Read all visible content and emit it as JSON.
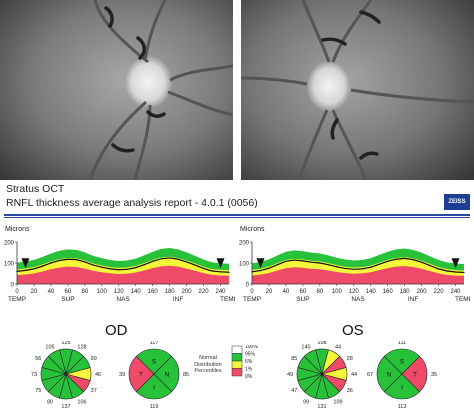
{
  "header": {
    "title": "Stratus OCT",
    "subtitle": "RNFL thickness average analysis report - 4.0.1 (0056)",
    "logo_text": "ZEISS"
  },
  "legend": {
    "title": "Normal Distribution Percentiles",
    "levels": [
      "100%",
      "95%",
      "5%",
      "1%",
      "0%"
    ],
    "colors": [
      "#ffffff",
      "#27c23a",
      "#f5f53a",
      "#f04a6a"
    ]
  },
  "od": {
    "label": "OD",
    "chart": {
      "ylabel": "Microns",
      "ylim": [
        0,
        200
      ],
      "yticks": [
        0,
        100,
        200
      ],
      "xticks": [
        0,
        20,
        40,
        60,
        80,
        100,
        120,
        140,
        160,
        180,
        200,
        220,
        240
      ],
      "region_labels": [
        "TEMP",
        "SUP",
        "NAS",
        "INF",
        "TEMP"
      ],
      "x": [
        0,
        10,
        20,
        30,
        40,
        50,
        60,
        70,
        80,
        90,
        100,
        110,
        120,
        130,
        140,
        150,
        160,
        170,
        180,
        190,
        200,
        210,
        220,
        230,
        240,
        250
      ],
      "y": [
        60,
        65,
        72,
        85,
        100,
        112,
        118,
        116,
        105,
        90,
        80,
        72,
        68,
        70,
        78,
        92,
        108,
        120,
        124,
        118,
        105,
        90,
        74,
        62,
        58,
        56
      ]
    },
    "clock_hours": [
      {
        "pos": "12",
        "value": "125",
        "category": "green"
      },
      {
        "pos": "1",
        "value": "105",
        "category": "green"
      },
      {
        "pos": "2",
        "value": "56",
        "category": "green"
      },
      {
        "pos": "3",
        "value": "73",
        "category": "green"
      },
      {
        "pos": "4",
        "value": "75",
        "category": "green"
      },
      {
        "pos": "5",
        "value": "80",
        "category": "green"
      },
      {
        "pos": "6",
        "value": "137",
        "category": "green"
      },
      {
        "pos": "7",
        "value": "106",
        "category": "green"
      },
      {
        "pos": "8",
        "value": "37",
        "category": "red"
      },
      {
        "pos": "9",
        "value": "46",
        "category": "yellow"
      },
      {
        "pos": "10",
        "value": "99",
        "category": "green"
      },
      {
        "pos": "11",
        "value": "128",
        "category": "green"
      }
    ],
    "quadrants": [
      {
        "pos": "S",
        "value": "117",
        "category": "green"
      },
      {
        "pos": "N",
        "value": "85",
        "category": "green"
      },
      {
        "pos": "I",
        "value": "119",
        "category": "green"
      },
      {
        "pos": "T",
        "value": "39",
        "category": "red"
      }
    ]
  },
  "os": {
    "label": "OS",
    "chart": {
      "ylabel": "Microns",
      "ylim": [
        0,
        200
      ],
      "yticks": [
        0,
        100,
        200
      ],
      "xticks": [
        0,
        20,
        40,
        60,
        80,
        100,
        120,
        140,
        160,
        180,
        200,
        220,
        240
      ],
      "region_labels": [
        "TEMP",
        "SUP",
        "NAS",
        "INF",
        "TEMP"
      ],
      "x": [
        0,
        10,
        20,
        30,
        40,
        50,
        60,
        70,
        80,
        90,
        100,
        110,
        120,
        130,
        140,
        150,
        160,
        170,
        180,
        190,
        200,
        210,
        220,
        230,
        240,
        250
      ],
      "y": [
        58,
        64,
        75,
        92,
        108,
        114,
        110,
        104,
        100,
        92,
        82,
        74,
        70,
        72,
        80,
        94,
        108,
        118,
        122,
        116,
        104,
        88,
        72,
        62,
        57,
        55
      ]
    },
    "clock_hours": [
      {
        "pos": "12",
        "value": "108",
        "category": "green"
      },
      {
        "pos": "1",
        "value": "44",
        "category": "yellow"
      },
      {
        "pos": "2",
        "value": "28",
        "category": "red"
      },
      {
        "pos": "3",
        "value": "44",
        "category": "yellow"
      },
      {
        "pos": "4",
        "value": "36",
        "category": "red"
      },
      {
        "pos": "5",
        "value": "109",
        "category": "green"
      },
      {
        "pos": "6",
        "value": "131",
        "category": "green"
      },
      {
        "pos": "7",
        "value": "99",
        "category": "green"
      },
      {
        "pos": "8",
        "value": "47",
        "category": "green"
      },
      {
        "pos": "9",
        "value": "49",
        "category": "green"
      },
      {
        "pos": "10",
        "value": "85",
        "category": "green"
      },
      {
        "pos": "11",
        "value": "140",
        "category": "green"
      }
    ],
    "quadrants": [
      {
        "pos": "S",
        "value": "111",
        "category": "green"
      },
      {
        "pos": "N",
        "value": "67",
        "category": "green"
      },
      {
        "pos": "I",
        "value": "113",
        "category": "green"
      },
      {
        "pos": "T",
        "value": "35",
        "category": "red"
      }
    ]
  }
}
